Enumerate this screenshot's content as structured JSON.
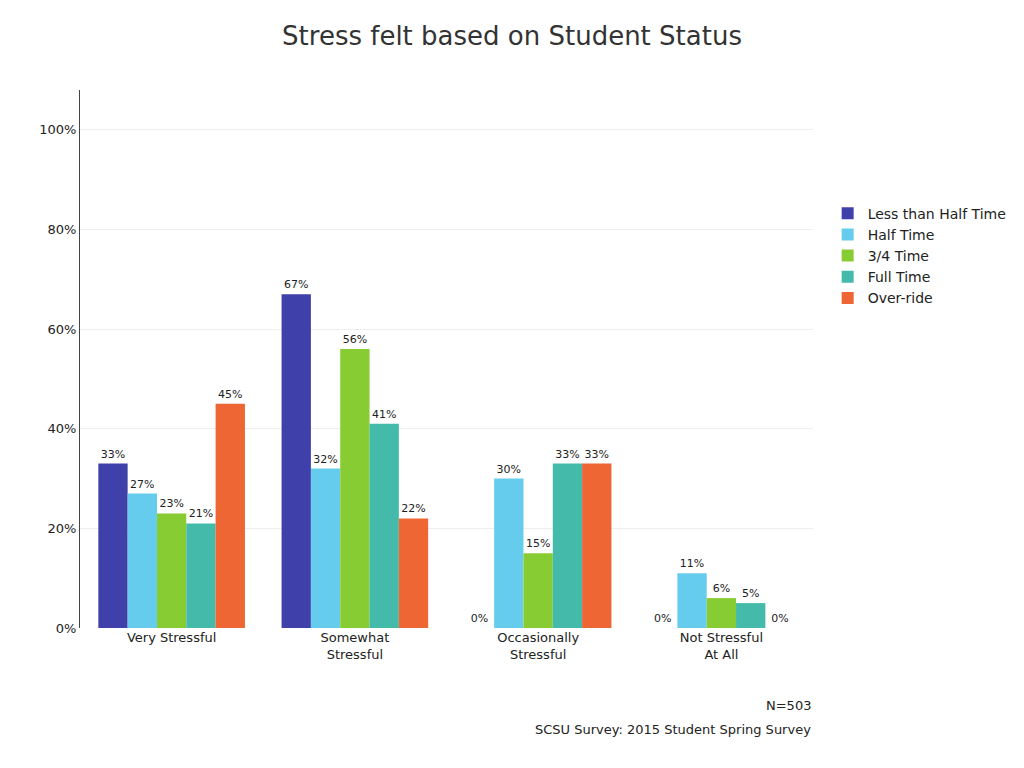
{
  "chart_data": {
    "type": "bar",
    "title": "Stress felt based on Student Status",
    "categories": [
      "Very Stressful",
      "Somewhat\nStressful",
      "Occasionally\nStressful",
      "Not Stressful\nAt All"
    ],
    "series": [
      {
        "name": "Less than Half Time",
        "color": "#4040AA",
        "values": [
          33,
          67,
          0,
          0
        ],
        "value_labels": [
          "33%",
          "67%",
          "0%",
          "0%"
        ]
      },
      {
        "name": "Half Time",
        "color": "#66CCEE",
        "values": [
          27,
          32,
          30,
          11
        ],
        "value_labels": [
          "27%",
          "32%",
          "30%",
          "11%"
        ]
      },
      {
        "name": "3/4 Time",
        "color": "#88CC33",
        "values": [
          23,
          56,
          15,
          6
        ],
        "value_labels": [
          "23%",
          "56%",
          "15%",
          "6%"
        ]
      },
      {
        "name": "Full Time",
        "color": "#44BBAA",
        "values": [
          21,
          41,
          33,
          5
        ],
        "value_labels": [
          "21%",
          "41%",
          "33%",
          "5%"
        ]
      },
      {
        "name": "Over-ride",
        "color": "#EE6633",
        "values": [
          45,
          22,
          33,
          0
        ],
        "value_labels": [
          "45%",
          "22%",
          "33%",
          "0%"
        ]
      }
    ],
    "ylim": [
      0,
      108
    ],
    "yticks": [
      {
        "value": 0,
        "label": "0%"
      },
      {
        "value": 20,
        "label": "20%"
      },
      {
        "value": 40,
        "label": "40%"
      },
      {
        "value": 60,
        "label": "60%"
      },
      {
        "value": 80,
        "label": "80%"
      },
      {
        "value": 100,
        "label": "100%"
      }
    ],
    "grid": true,
    "legend": "right",
    "data_labels": true,
    "annotations": [
      "N=503",
      "SCSU Survey: 2015 Student Spring Survey"
    ]
  }
}
